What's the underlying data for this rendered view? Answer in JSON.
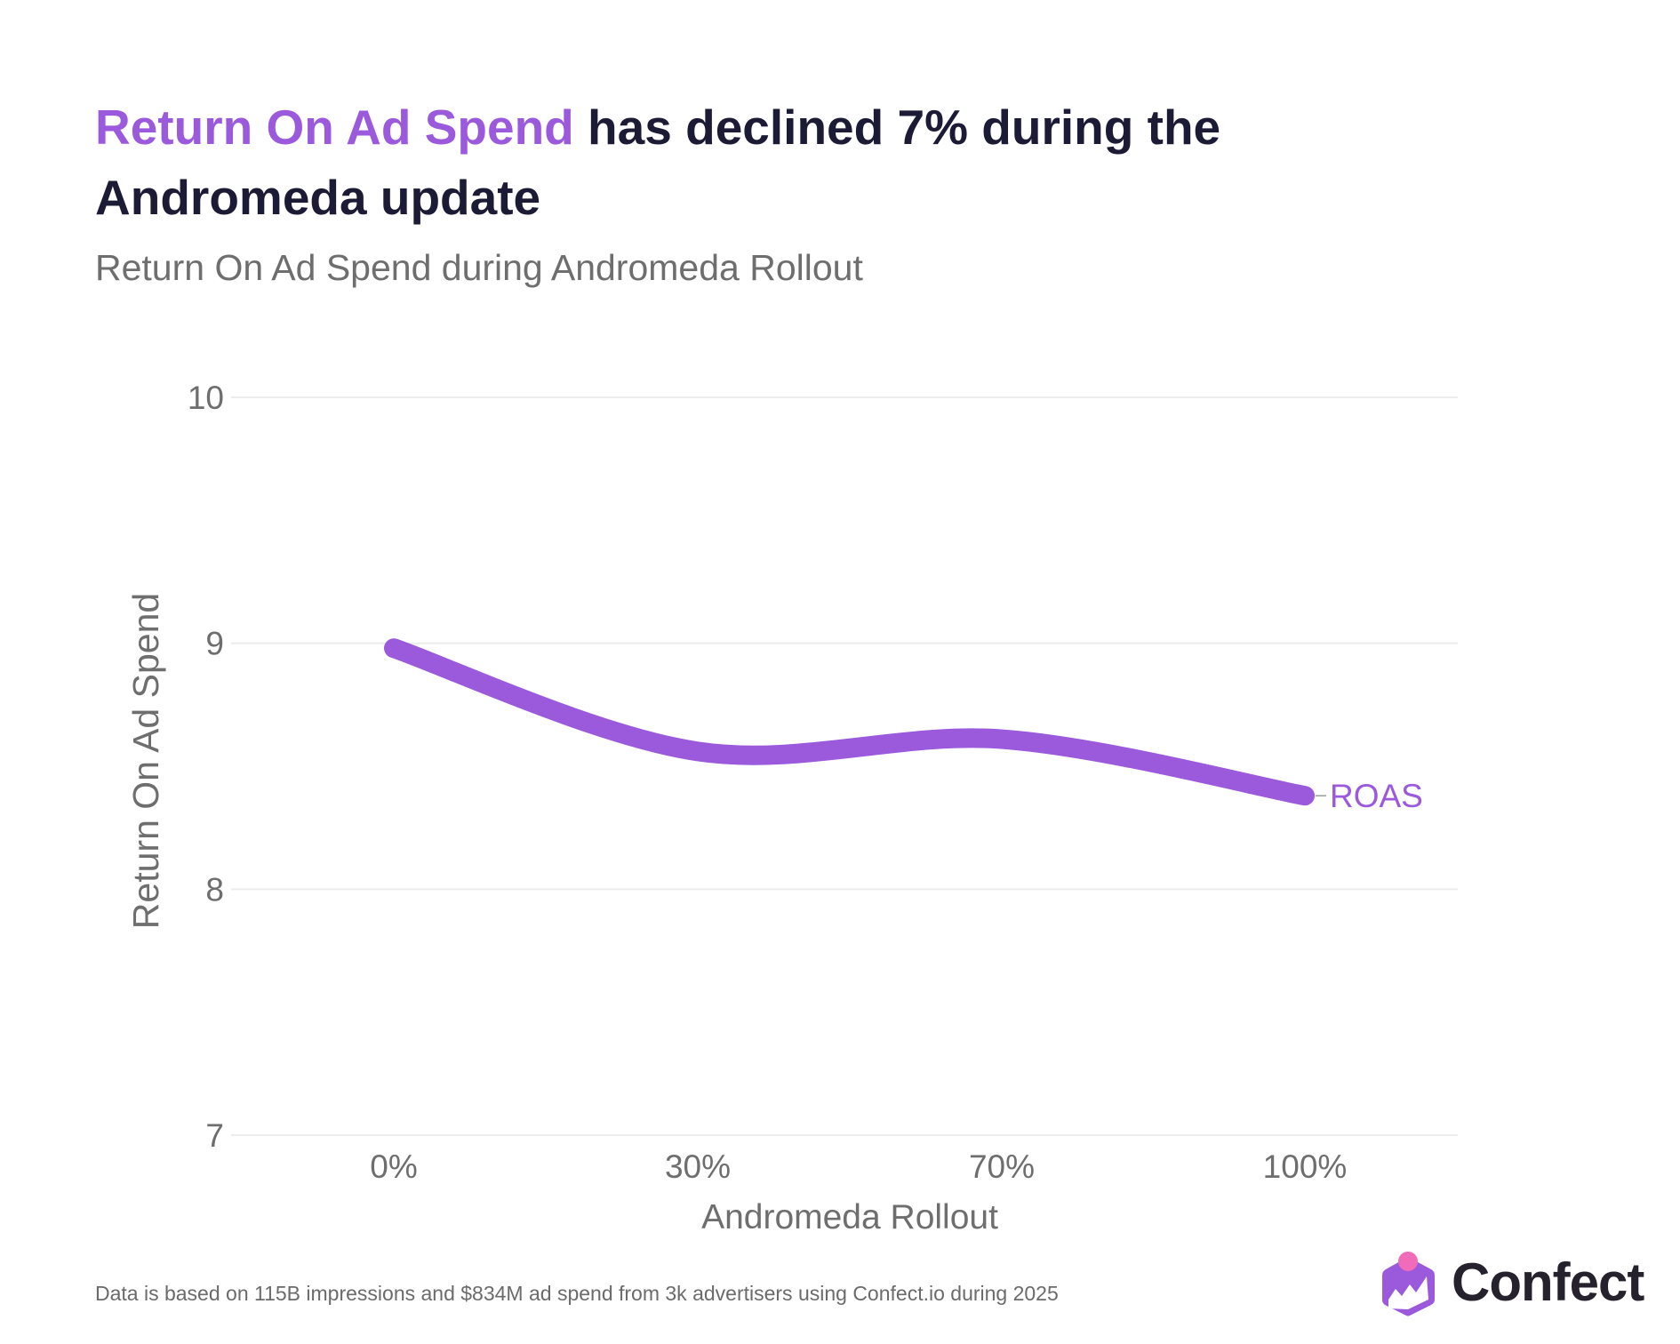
{
  "header": {
    "title_highlight": "Return On Ad Spend",
    "title_rest": " has declined 7% during the Andromeda update",
    "subtitle": "Return On Ad Spend during Andromeda Rollout"
  },
  "footer": {
    "note": "Data is based on 115B impressions and $834M ad spend from 3k advertisers using Confect.io during 2025"
  },
  "brand": {
    "name": "Confect",
    "logo_icon": "confect-logo-icon",
    "colors": {
      "purple": "#9b59dc",
      "pink": "#f06bb8",
      "dark": "#25222d"
    }
  },
  "chart_data": {
    "type": "line",
    "title": "Return On Ad Spend during Andromeda Rollout",
    "xlabel": "Andromeda Rollout",
    "ylabel": "Return On Ad Spend",
    "categories": [
      "0%",
      "30%",
      "70%",
      "100%"
    ],
    "series": [
      {
        "name": "ROAS",
        "color": "#9b59dc",
        "values": [
          8.98,
          8.56,
          8.61,
          8.38
        ]
      }
    ],
    "yticks": [
      7,
      8,
      9,
      10
    ],
    "ylim": [
      7,
      10
    ],
    "grid": true,
    "legend": "inline-end-label",
    "smooth": true
  }
}
